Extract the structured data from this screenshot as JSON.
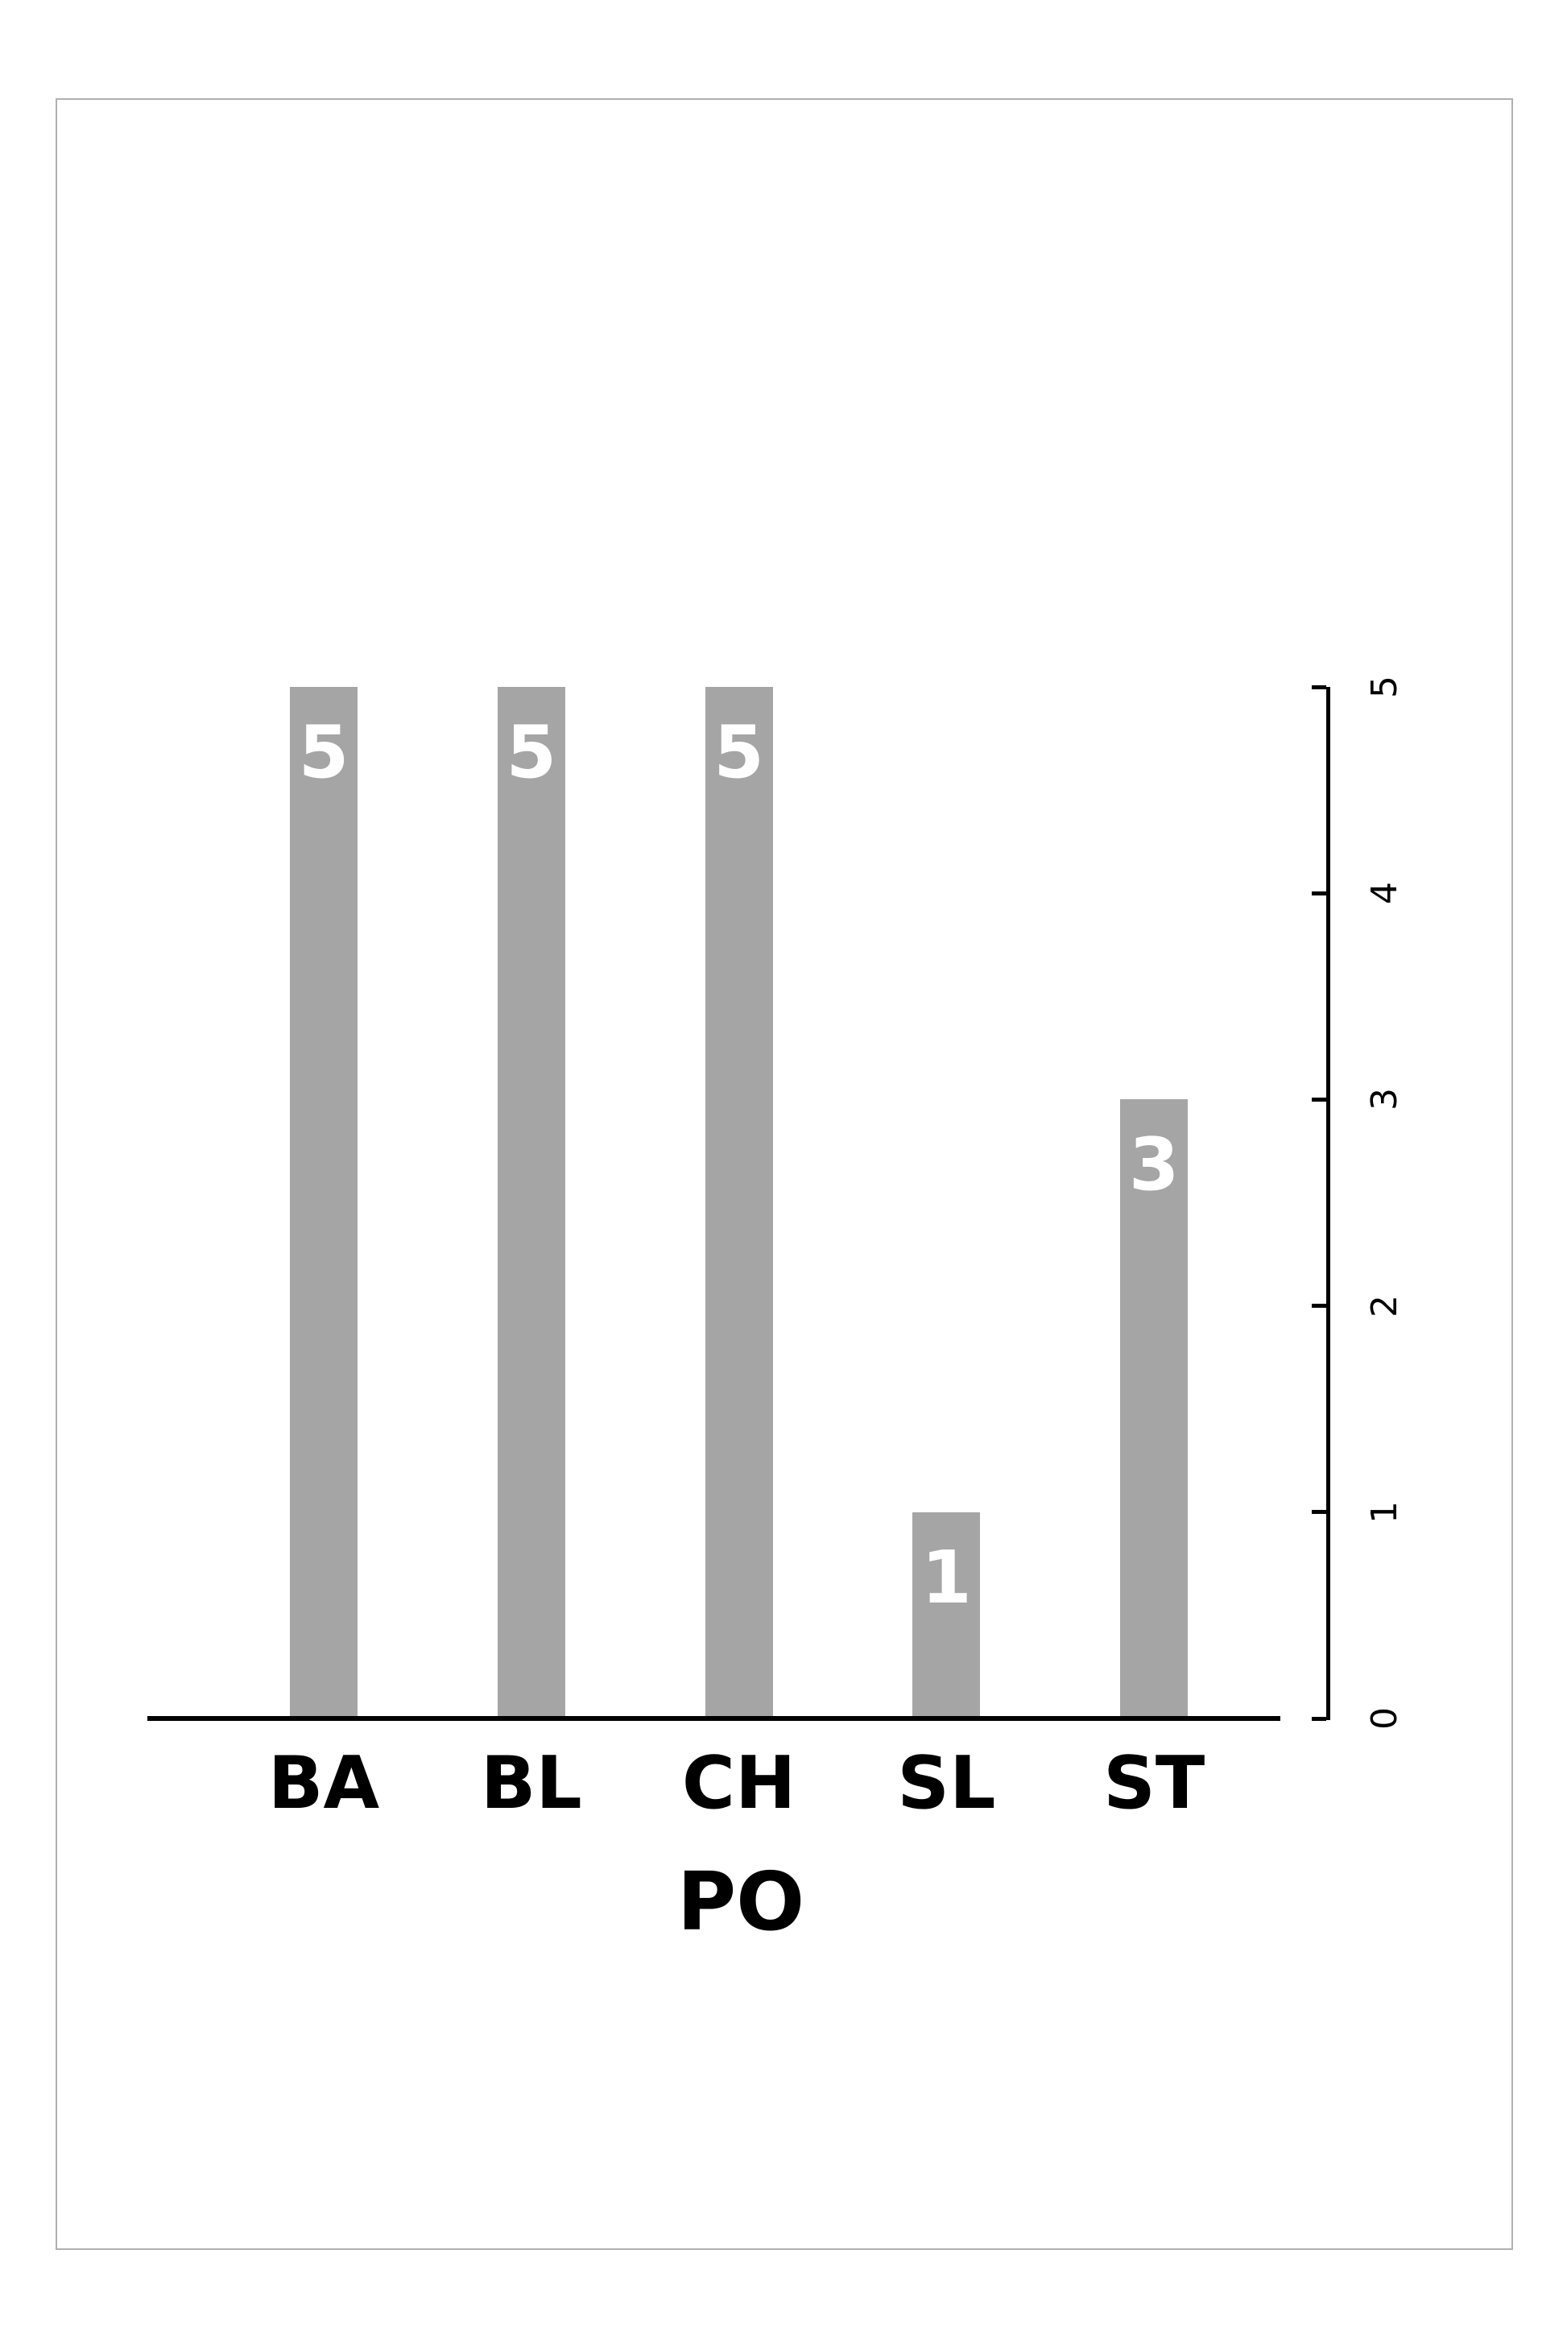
{
  "chart_data": {
    "type": "bar",
    "categories": [
      "BA",
      "BL",
      "CH",
      "SL",
      "ST"
    ],
    "values": [
      5,
      5,
      5,
      1,
      3
    ],
    "bar_value_labels": [
      "5",
      "5",
      "5",
      "1",
      "3"
    ],
    "title": "",
    "xlabel": "PO",
    "ylabel": "",
    "ylim": [
      0,
      5
    ],
    "yticks": [
      0,
      1,
      2,
      3,
      4,
      5
    ],
    "yaxis_side": "right",
    "ytick_label_rotation_deg": -90,
    "grid": false,
    "legend": false,
    "colors": {
      "bar": "#a5a5a5",
      "bar_value_label": "#ffffff",
      "axis": "#000000",
      "text": "#000000",
      "page_border": "#b0b0b0",
      "background": "#ffffff"
    }
  }
}
